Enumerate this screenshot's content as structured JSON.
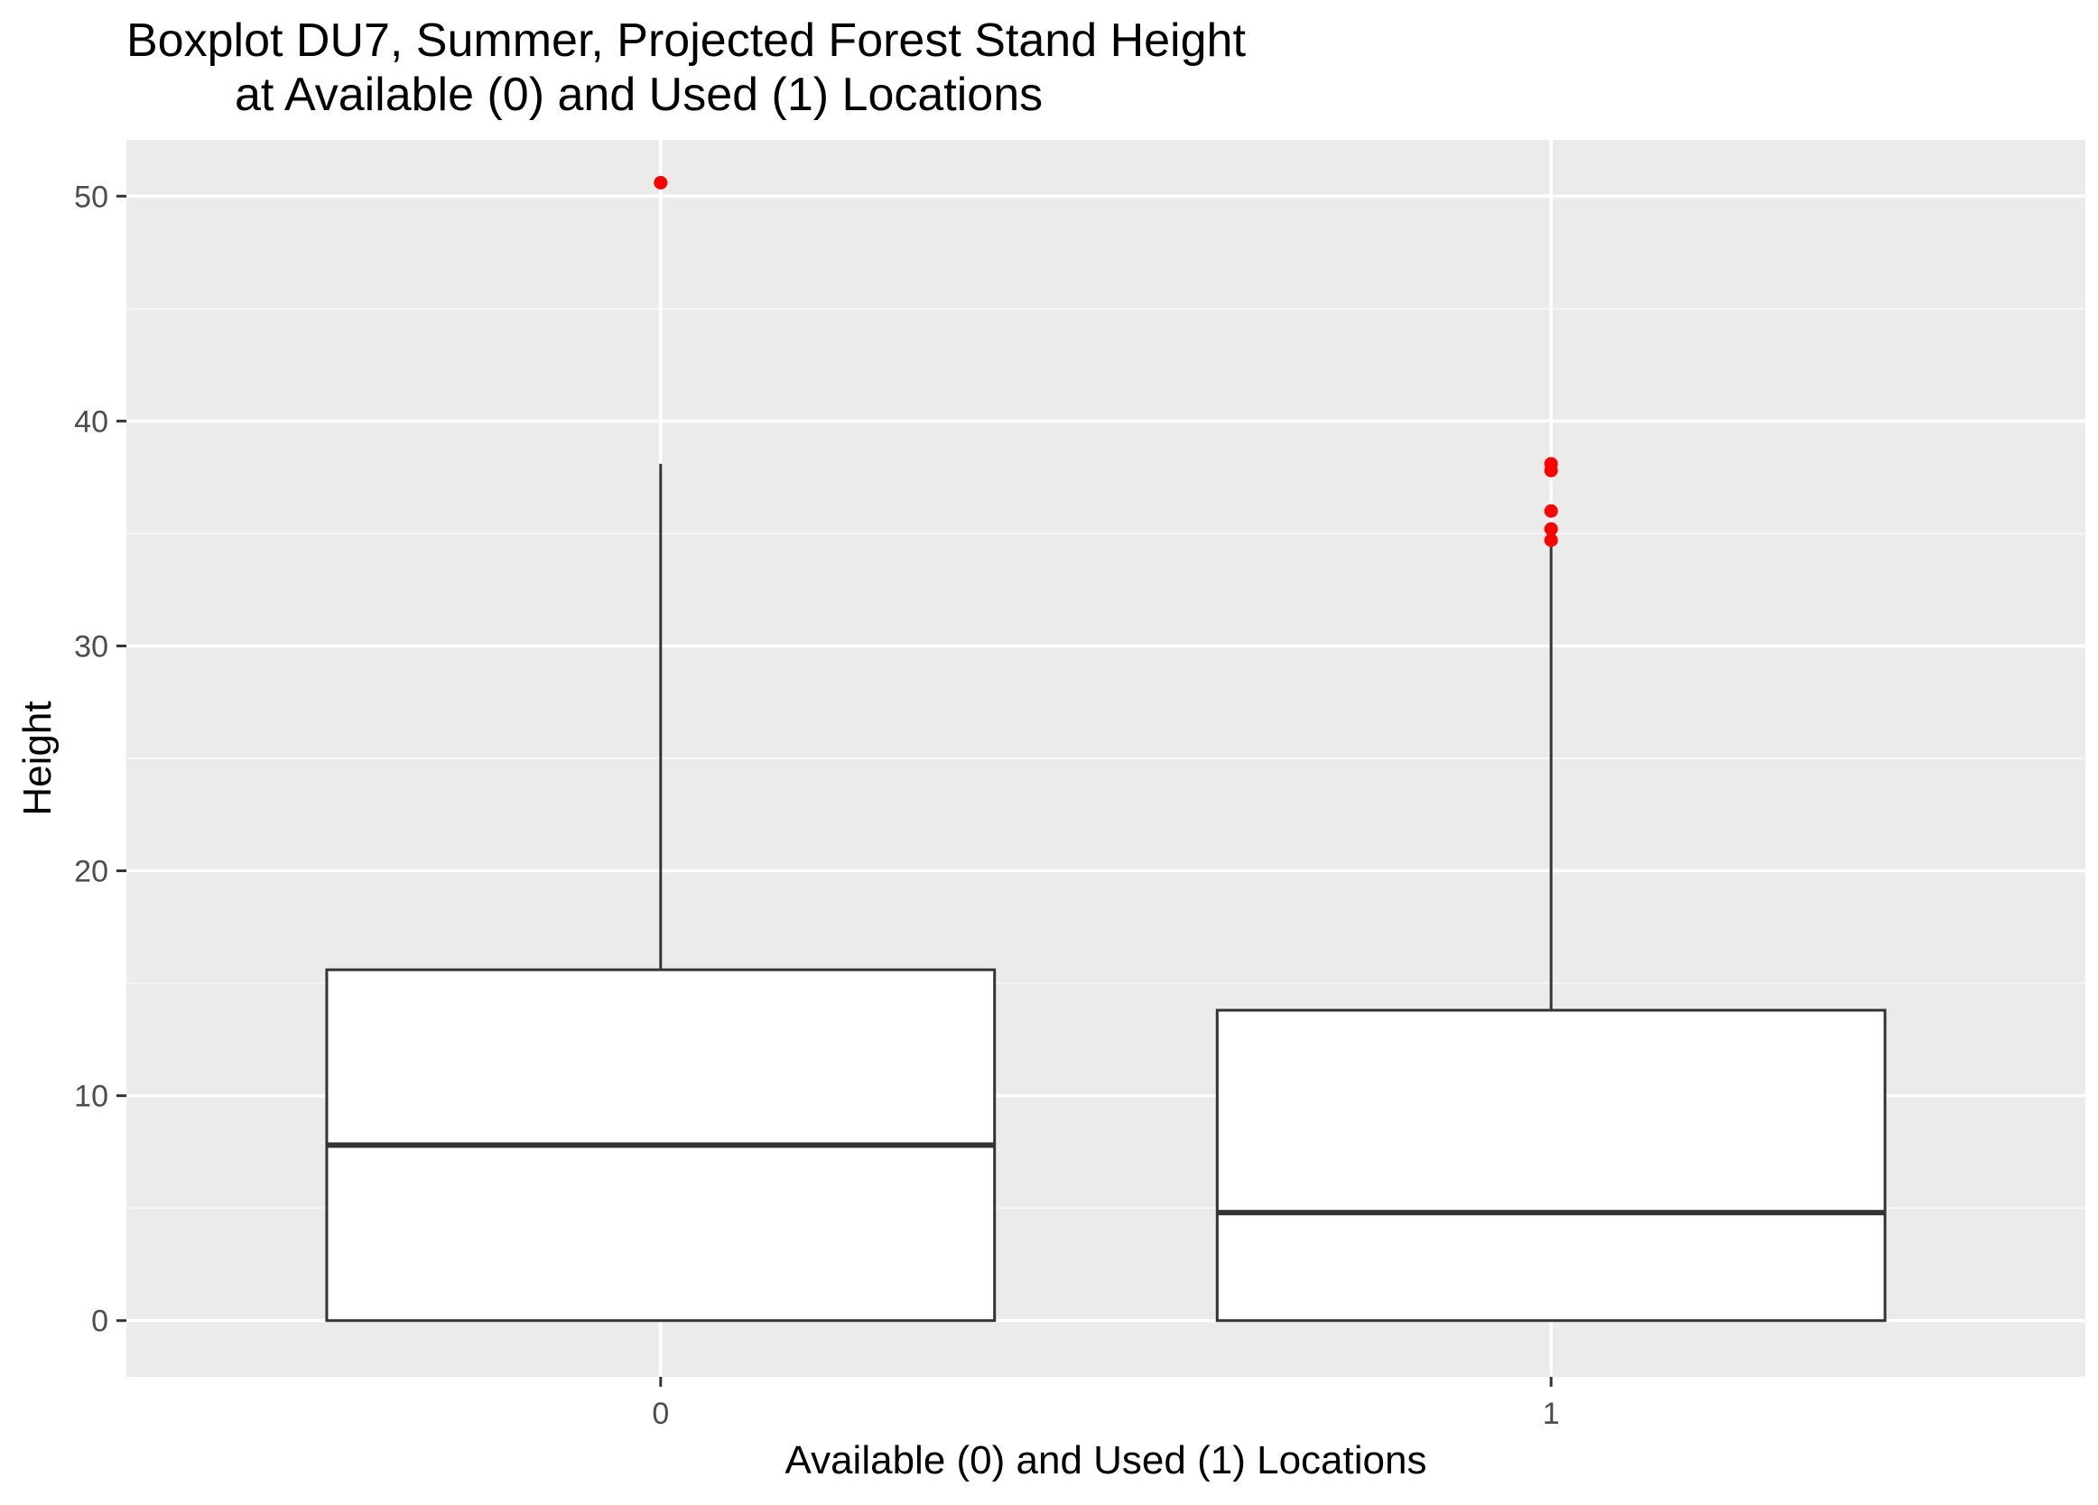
{
  "chart_data": {
    "type": "boxplot",
    "title": "Boxplot DU7, Summer, Projected Forest Stand Height",
    "subtitle": "at Available (0) and Used (1) Locations",
    "xlabel": "Available (0) and Used (1) Locations",
    "ylabel": "Height",
    "categories": [
      "0",
      "1"
    ],
    "ylim": [
      -2.5,
      52.5
    ],
    "yticks": [
      0,
      10,
      20,
      30,
      40,
      50
    ],
    "ytick_labels": [
      "0",
      "10",
      "20",
      "30",
      "40",
      "50"
    ],
    "grid": true,
    "legend": "none",
    "colors": {
      "panel_background": "#ebebeb",
      "grid_major": "#ffffff",
      "grid_minor": "#f6f6f6",
      "box_fill": "#ffffff",
      "box_line": "#333333",
      "outlier": "#ff0000",
      "tick_label": "#4d4d4d"
    },
    "boxes": [
      {
        "category": "0",
        "min": 0,
        "q1": 0,
        "median": 7.8,
        "q3": 15.6,
        "max": 38.1,
        "outliers": [
          50.6
        ]
      },
      {
        "category": "1",
        "min": 0,
        "q1": 0,
        "median": 4.8,
        "q3": 13.8,
        "max": 34.7,
        "outliers": [
          34.7,
          35.2,
          36.0,
          37.8,
          38.1
        ]
      }
    ]
  }
}
